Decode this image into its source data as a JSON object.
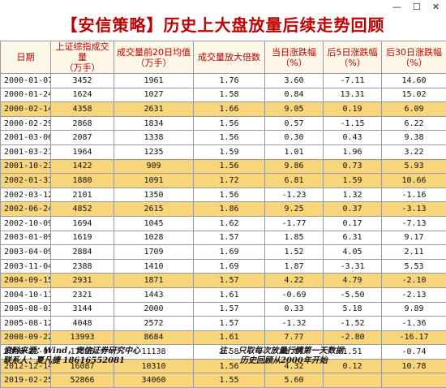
{
  "window": {
    "controls": [
      "—",
      "☐",
      "✕"
    ]
  },
  "title": "【安信策略】历史上大盘放量后续走势回顾",
  "table": {
    "headers": [
      "日期",
      "上证综指成交量\n（万手）",
      "成交量前20日均值\n（万手）",
      "成交量放大倍数",
      "当日涨跌幅\n（%）",
      "后5日涨跌幅\n（%）",
      "后30日涨跌幅\n（%）"
    ],
    "rows": [
      {
        "cells": [
          "2000-01-07",
          "3452",
          "1961",
          "1.76",
          "3.60",
          "-7.11",
          "14.60"
        ],
        "highlight": false
      },
      {
        "cells": [
          "2000-01-24",
          "1624",
          "1027",
          "1.58",
          "0.84",
          "13.31",
          "15.02"
        ],
        "highlight": false
      },
      {
        "cells": [
          "2000-02-14",
          "4358",
          "2631",
          "1.66",
          "9.05",
          "0.19",
          "6.09"
        ],
        "highlight": true
      },
      {
        "cells": [
          "2000-02-29",
          "2868",
          "1834",
          "1.56",
          "0.57",
          "-1.15",
          "6.22"
        ],
        "highlight": false
      },
      {
        "cells": [
          "2001-03-06",
          "2087",
          "1338",
          "1.56",
          "0.30",
          "0.43",
          "9.38"
        ],
        "highlight": false
      },
      {
        "cells": [
          "2001-03-21",
          "1964",
          "1235",
          "1.59",
          "1.01",
          "1.96",
          "3.22"
        ],
        "highlight": false
      },
      {
        "cells": [
          "2001-10-23",
          "1422",
          "909",
          "1.56",
          "9.86",
          "0.73",
          "5.93"
        ],
        "highlight": true
      },
      {
        "cells": [
          "2002-01-31",
          "1880",
          "1091",
          "1.72",
          "6.81",
          "1.59",
          "10.66"
        ],
        "highlight": true
      },
      {
        "cells": [
          "2002-03-12",
          "2101",
          "1350",
          "1.56",
          "-1.23",
          "1.32",
          "-1.16"
        ],
        "highlight": false
      },
      {
        "cells": [
          "2002-06-24",
          "4852",
          "2615",
          "1.86",
          "9.25",
          "0.37",
          "-3.13"
        ],
        "highlight": true
      },
      {
        "cells": [
          "2002-10-09",
          "1694",
          "1045",
          "1.62",
          "-1.77",
          "0.17",
          "-7.13"
        ],
        "highlight": false
      },
      {
        "cells": [
          "2003-01-09",
          "1619",
          "1028",
          "1.57",
          "1.85",
          "6.31",
          "9.17"
        ],
        "highlight": false
      },
      {
        "cells": [
          "2003-04-09",
          "2884",
          "1709",
          "1.69",
          "1.52",
          "4.05",
          "2.11"
        ],
        "highlight": false
      },
      {
        "cells": [
          "2003-11-04",
          "2388",
          "1410",
          "1.69",
          "1.87",
          "-3.31",
          "5.53"
        ],
        "highlight": false
      },
      {
        "cells": [
          "2004-09-15",
          "2931",
          "1871",
          "1.57",
          "4.22",
          "4.79",
          "-2.10"
        ],
        "highlight": true
      },
      {
        "cells": [
          "2004-10-11",
          "2321",
          "1443",
          "1.61",
          "-0.69",
          "-5.50",
          "-2.13"
        ],
        "highlight": false
      },
      {
        "cells": [
          "2005-08-03",
          "3144",
          "2000",
          "1.57",
          "0.33",
          "5.18",
          "9.89"
        ],
        "highlight": false
      },
      {
        "cells": [
          "2005-08-12",
          "4048",
          "2572",
          "1.57",
          "-1.32",
          "-1.52",
          "-1.36"
        ],
        "highlight": false
      },
      {
        "cells": [
          "2008-09-22",
          "13993",
          "8684",
          "1.61",
          "7.77",
          "-2.80",
          "-16.17"
        ],
        "highlight": true
      },
      {
        "cells": [
          "2008-12-04",
          "17595",
          "11138",
          "1.58",
          "1.84",
          "1.51",
          "-0.74"
        ],
        "highlight": false
      },
      {
        "cells": [
          "2012-12-14",
          "16087",
          "10310",
          "1.56",
          "4.32",
          "0.12",
          "10.78"
        ],
        "highlight": true
      },
      {
        "cells": [
          "2019-02-25",
          "52866",
          "34060",
          "1.55",
          "5.60",
          "",
          ""
        ],
        "highlight": true
      }
    ]
  },
  "footer": {
    "source": "资料来源：Wind，安信证券研究中心",
    "contact": "联系人：夏凡捷  18616552081",
    "note1": "注：  只取每次放量行情第一天数据",
    "note2": "历史回顾从2000年开始"
  },
  "colors": {
    "title": "#c00000",
    "highlight_row": "#f9d57a",
    "header_bg": "#fdf7e7"
  }
}
